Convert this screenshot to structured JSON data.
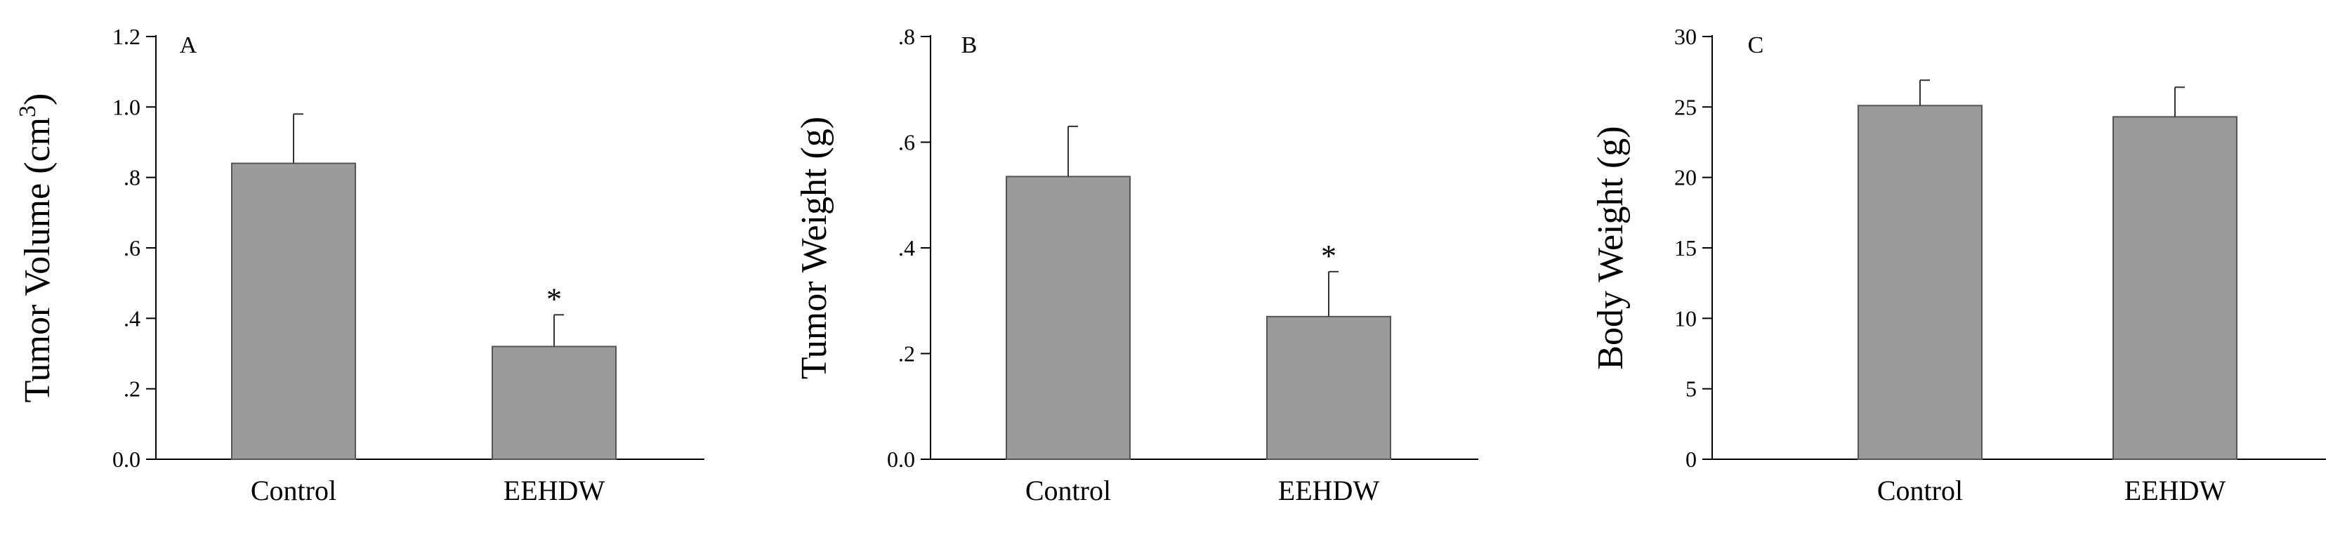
{
  "figure": {
    "bar_color": "#9b9b9b",
    "bar_stroke": "#555555",
    "axis_color": "#000000"
  },
  "chart_data": [
    {
      "type": "bar",
      "panel_label": "A",
      "ylabel": "Tumor Volume (cm",
      "ylabel_sup": "3",
      "ylabel_suffix": ")",
      "categories": [
        "Control",
        "EEHDW"
      ],
      "values": [
        0.84,
        0.32
      ],
      "errors": [
        0.14,
        0.09
      ],
      "significance": [
        "",
        "*"
      ],
      "ylim": [
        0,
        1.2
      ],
      "yticks": [
        0,
        0.2,
        0.4,
        0.6,
        0.8,
        1.0,
        1.2
      ],
      "ytick_labels": [
        "0.0",
        ".2",
        ".4",
        ".6",
        ".8",
        "1.0",
        "1.2"
      ]
    },
    {
      "type": "bar",
      "panel_label": "B",
      "ylabel": "Tumor Weight (g)",
      "categories": [
        "Control",
        "EEHDW"
      ],
      "values": [
        0.535,
        0.27
      ],
      "errors": [
        0.095,
        0.085
      ],
      "significance": [
        "",
        "*"
      ],
      "ylim": [
        0,
        0.8
      ],
      "yticks": [
        0,
        0.2,
        0.4,
        0.6,
        0.8
      ],
      "ytick_labels": [
        "0.0",
        ".2",
        ".4",
        ".6",
        ".8"
      ]
    },
    {
      "type": "bar",
      "panel_label": "C",
      "ylabel": "Body Weight (g)",
      "categories": [
        "Control",
        "EEHDW"
      ],
      "values": [
        25.1,
        24.3
      ],
      "errors": [
        1.8,
        2.1
      ],
      "significance": [
        "",
        ""
      ],
      "ylim": [
        0,
        30
      ],
      "yticks": [
        0,
        5,
        10,
        15,
        20,
        25,
        30
      ],
      "ytick_labels": [
        "0",
        "5",
        "10",
        "15",
        "20",
        "25",
        "30"
      ]
    }
  ]
}
